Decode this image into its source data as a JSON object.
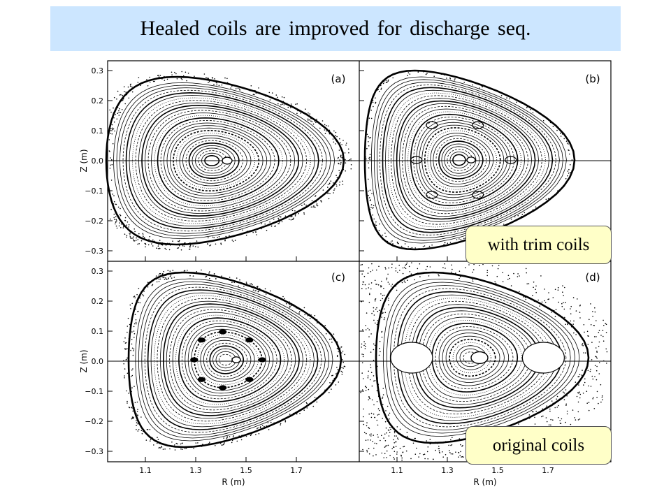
{
  "title": "Healed coils are improved for discharge seq.",
  "callouts": {
    "trim": "with trim coils",
    "original": "original coils"
  },
  "axes": {
    "ylabel": "Z (m)",
    "xlabel": "R (m)",
    "y_ticks": [
      "0.3",
      "0.2",
      "0.1",
      "0.0",
      "−0.1",
      "−0.2",
      "−0.3"
    ],
    "x_ticks": [
      "1.1",
      "1.3",
      "1.5",
      "1.7"
    ]
  },
  "panels": [
    {
      "id": "a",
      "label": "(a)"
    },
    {
      "id": "b",
      "label": "(b)"
    },
    {
      "id": "c",
      "label": "(c)"
    },
    {
      "id": "d",
      "label": "(d)"
    }
  ],
  "colors": {
    "title_bg": "#cce6ff",
    "callout_bg": "#ffffc8",
    "ink": "#000000"
  }
}
